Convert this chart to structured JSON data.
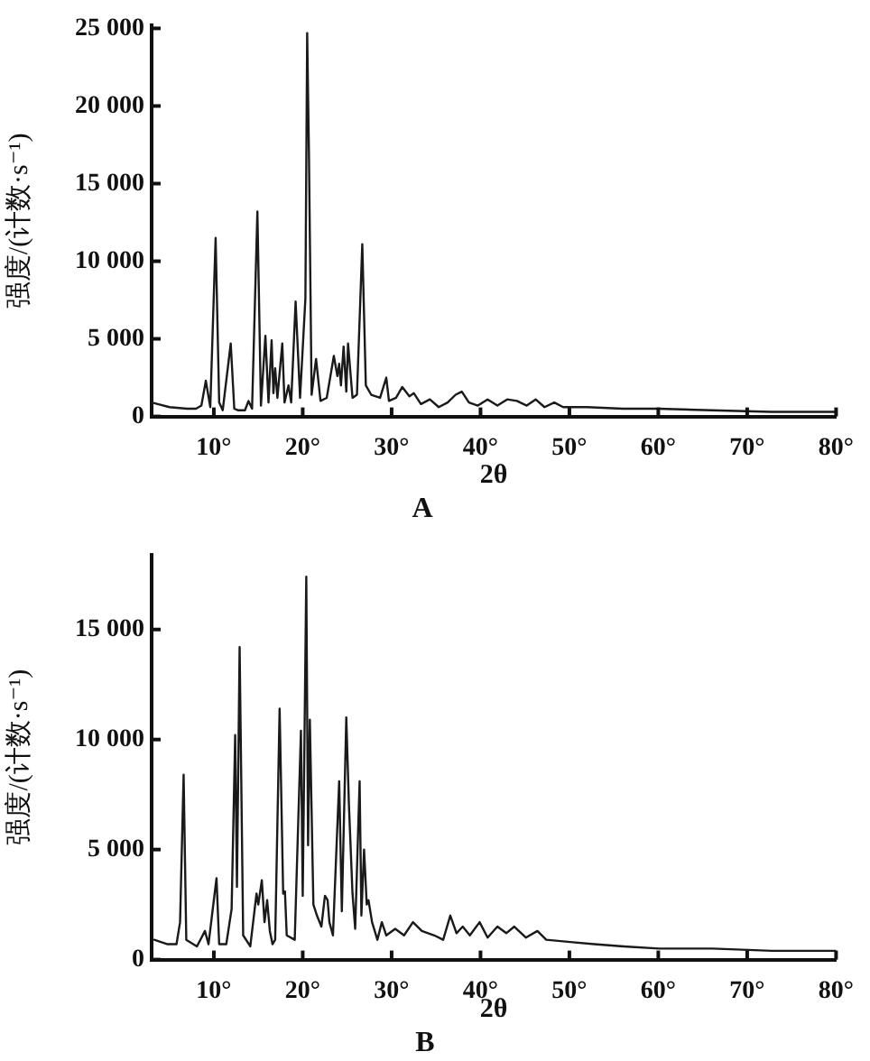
{
  "chart_data": [
    {
      "type": "line",
      "title": "A",
      "xlabel": "2θ",
      "ylabel": "强度/(计数·s⁻¹)",
      "grid": false,
      "legend": false,
      "x": [
        3,
        5,
        7,
        8,
        8.6,
        9.1,
        9.6,
        10.2,
        10.6,
        11,
        11.9,
        12.3,
        12.7,
        13.5,
        13.9,
        14.3,
        14.9,
        15.3,
        15.8,
        16.15,
        16.5,
        16.7,
        16.9,
        17.15,
        17.7,
        17.95,
        18.4,
        18.7,
        19.2,
        19.7,
        20.3,
        20.5,
        20.7,
        21,
        21.5,
        22,
        22.7,
        23.5,
        23.9,
        24.1,
        24.3,
        24.6,
        24.9,
        25.1,
        25.6,
        26.1,
        26.7,
        27.1,
        27.7,
        28.7,
        29.4,
        29.7,
        30.5,
        31.2,
        32,
        32.5,
        33.3,
        34.3,
        35.3,
        36.3,
        37.2,
        37.9,
        38.7,
        39.7,
        40.8,
        41.9,
        43,
        44.1,
        45.2,
        46.2,
        47.2,
        48.3,
        49.3,
        52,
        56,
        60,
        66,
        72.7,
        80
      ],
      "series": [
        {
          "color": "#1a1a1a",
          "values": [
            900,
            600,
            500,
            500,
            700,
            2300,
            600,
            11500,
            900,
            400,
            4700,
            500,
            400,
            400,
            1000,
            500,
            13200,
            700,
            5200,
            900,
            4900,
            1500,
            3100,
            1200,
            4700,
            900,
            2000,
            900,
            7400,
            1200,
            7600,
            24700,
            16900,
            1400,
            3700,
            1000,
            1200,
            3900,
            2600,
            3400,
            2000,
            4500,
            1600,
            4700,
            1200,
            1400,
            11100,
            2000,
            1400,
            1200,
            2500,
            1000,
            1200,
            1900,
            1300,
            1500,
            800,
            1100,
            600,
            900,
            1400,
            1600,
            900,
            700,
            1100,
            700,
            1100,
            1000,
            700,
            1100,
            600,
            900,
            600,
            600,
            500,
            500,
            400,
            300,
            300
          ]
        }
      ],
      "xlim": [
        3,
        80
      ],
      "ylim": [
        0,
        25200
      ],
      "xticks": [
        {
          "value": 10,
          "label": "10°"
        },
        {
          "value": 20,
          "label": "20°"
        },
        {
          "value": 30,
          "label": "30°"
        },
        {
          "value": 40,
          "label": "40°"
        },
        {
          "value": 50,
          "label": "50°"
        },
        {
          "value": 60,
          "label": "60°"
        },
        {
          "value": 70,
          "label": "70°"
        },
        {
          "value": 80,
          "label": "80°"
        }
      ],
      "yticks": [
        0,
        {
          "value": 5000,
          "label": "5 000"
        },
        {
          "value": 10000,
          "label": "10 000"
        },
        {
          "value": 15000,
          "label": "15 000"
        },
        {
          "value": 20000,
          "label": "20 000"
        },
        {
          "value": 25000,
          "label": "25 000"
        }
      ]
    },
    {
      "type": "line",
      "title": "B",
      "xlabel": "2θ",
      "ylabel": "强度/(计数·s⁻¹)",
      "grid": false,
      "legend": false,
      "x": [
        3.3,
        4.8,
        5.8,
        6.2,
        6.6,
        6.9,
        8.1,
        9,
        9.4,
        10.3,
        10.6,
        11.4,
        12,
        12.4,
        12.6,
        12.9,
        13.3,
        14.1,
        14.8,
        15,
        15.4,
        15.7,
        16,
        16.3,
        16.6,
        16.9,
        17.4,
        17.8,
        18,
        18.2,
        19.1,
        19.8,
        20,
        20.4,
        20.6,
        20.8,
        21.2,
        21.6,
        22.1,
        22.5,
        22.8,
        23,
        23.4,
        24.1,
        24.4,
        24.9,
        25.2,
        25.6,
        25.9,
        26.4,
        26.6,
        26.9,
        27.2,
        27.4,
        27.8,
        28.4,
        28.9,
        29.4,
        30.4,
        31.4,
        32.4,
        33.4,
        34.8,
        35.8,
        36.6,
        37.3,
        38,
        38.8,
        39.9,
        40.8,
        41.9,
        42.9,
        43.8,
        45.1,
        46.4,
        47.4,
        50.1,
        52.8,
        56.1,
        60.1,
        66.1,
        72.8,
        80
      ],
      "series": [
        {
          "color": "#1a1a1a",
          "values": [
            900,
            700,
            700,
            1700,
            8400,
            900,
            600,
            1300,
            700,
            3700,
            700,
            700,
            2300,
            10200,
            3300,
            14200,
            1100,
            600,
            3000,
            2500,
            3600,
            1700,
            2700,
            1300,
            700,
            900,
            11400,
            3000,
            3100,
            1100,
            900,
            10400,
            2900,
            17400,
            5200,
            10900,
            2500,
            2000,
            1500,
            2900,
            2700,
            1700,
            1100,
            8100,
            2200,
            11000,
            7000,
            3000,
            1400,
            8100,
            2000,
            5000,
            2500,
            2700,
            1700,
            900,
            1700,
            1100,
            1400,
            1100,
            1700,
            1300,
            1100,
            900,
            2000,
            1200,
            1500,
            1100,
            1700,
            1000,
            1500,
            1200,
            1500,
            1000,
            1300,
            900,
            800,
            700,
            600,
            500,
            500,
            400,
            400
          ]
        }
      ],
      "xlim": [
        3,
        80
      ],
      "ylim": [
        0,
        18400
      ],
      "xticks": [
        {
          "value": 10,
          "label": "10°"
        },
        {
          "value": 20,
          "label": "20°"
        },
        {
          "value": 30,
          "label": "30°"
        },
        {
          "value": 40,
          "label": "40°"
        },
        {
          "value": 50,
          "label": "50°"
        },
        {
          "value": 60,
          "label": "60°"
        },
        {
          "value": 70,
          "label": "70°"
        },
        {
          "value": 80,
          "label": "80°"
        }
      ],
      "yticks": [
        0,
        {
          "value": 5000,
          "label": "5 000"
        },
        {
          "value": 10000,
          "label": "10 000"
        },
        {
          "value": 15000,
          "label": "15 000"
        }
      ]
    }
  ]
}
